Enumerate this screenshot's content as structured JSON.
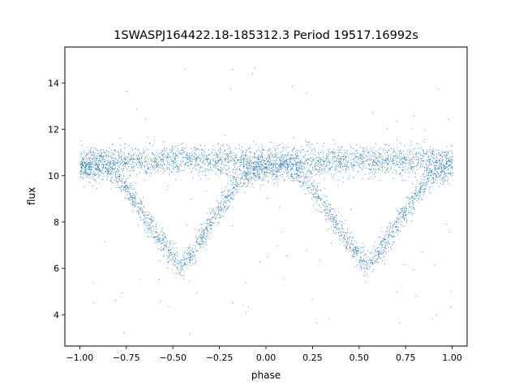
{
  "chart_data": {
    "type": "scatter",
    "title": "1SWASPJ164422.18-185312.3 Period 19517.16992s",
    "xlabel": "phase",
    "ylabel": "flux",
    "xlim": [
      -1.08,
      1.08
    ],
    "ylim": [
      2.65,
      15.55
    ],
    "x_ticks": [
      -1.0,
      -0.75,
      -0.5,
      -0.25,
      0.0,
      0.25,
      0.5,
      0.75,
      1.0
    ],
    "x_tick_labels": [
      "−1.00",
      "−0.75",
      "−0.50",
      "−0.25",
      "0.00",
      "0.25",
      "0.50",
      "0.75",
      "1.00"
    ],
    "y_ticks": [
      4,
      6,
      8,
      10,
      12,
      14
    ],
    "y_tick_labels": [
      "4",
      "6",
      "8",
      "10",
      "12",
      "14"
    ],
    "grid": false,
    "marker_color": "#1f77b4",
    "series": [
      {
        "name": "",
        "description_free": true,
        "upper_band": {
          "x": [
            -1.0,
            1.0
          ],
          "y": [
            10.65,
            10.65
          ]
        },
        "lower_branch_x": [
          -1.0,
          -0.9,
          -0.8,
          -0.7,
          -0.6,
          -0.5,
          -0.46,
          -0.4,
          -0.3,
          -0.2,
          -0.1,
          0.0,
          0.1,
          0.2,
          0.3,
          0.4,
          0.5,
          0.54,
          0.6,
          0.7,
          0.8,
          0.9,
          1.0
        ],
        "lower_branch_y": [
          10.3,
          10.4,
          10.0,
          8.9,
          7.6,
          6.5,
          6.2,
          6.6,
          7.9,
          9.2,
          10.1,
          10.35,
          10.4,
          10.0,
          8.9,
          7.6,
          6.5,
          6.2,
          6.6,
          7.9,
          9.2,
          10.1,
          10.35
        ]
      }
    ]
  }
}
